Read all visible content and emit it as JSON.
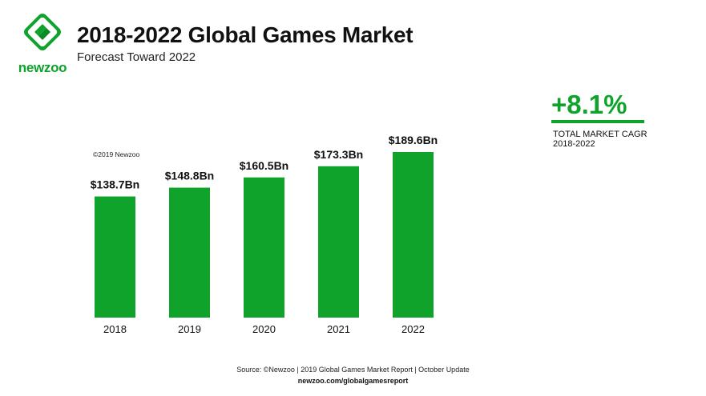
{
  "brand": {
    "name": "newzoo",
    "color": "#0fa32c"
  },
  "header": {
    "title": "2018-2022 Global Games Market",
    "subtitle": "Forecast Toward 2022"
  },
  "cagr": {
    "value": "+8.1%",
    "label_line1": "TOTAL MARKET CAGR",
    "label_line2": "2018-2022"
  },
  "copyright": "©2019 Newzoo",
  "chart_data": {
    "type": "bar",
    "title": "2018-2022 Global Games Market",
    "subtitle": "Forecast Toward 2022",
    "categories": [
      "2018",
      "2019",
      "2020",
      "2021",
      "2022"
    ],
    "values": [
      138.7,
      148.8,
      160.5,
      173.3,
      189.6
    ],
    "value_labels": [
      "$138.7Bn",
      "$148.8Bn",
      "$160.5Bn",
      "$173.3Bn",
      "$189.6Bn"
    ],
    "unit": "Bn USD",
    "xlabel": "",
    "ylabel": "",
    "ylim": [
      0,
      189.6
    ],
    "bar_color": "#0fa32c",
    "grid": false,
    "legend": false
  },
  "footer": {
    "source": "Source: ©Newzoo | 2019 Global Games Market Report | October Update",
    "url": "newzoo.com/globalgamesreport"
  }
}
